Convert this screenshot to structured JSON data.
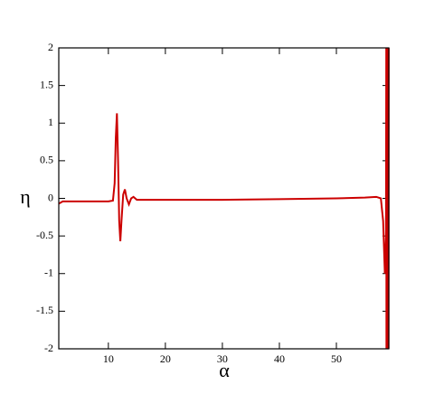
{
  "chart_data": {
    "type": "line",
    "x_label": "α",
    "y_label": "η",
    "x": [
      1.3,
      2,
      5,
      10,
      10.8,
      11.1,
      11.3,
      11.5,
      11.7,
      11.9,
      12.1,
      12.3,
      12.6,
      12.9,
      13.2,
      13.6,
      14.0,
      14.4,
      15,
      20,
      30,
      40,
      50,
      55,
      57,
      57.8,
      58.2,
      58.5,
      58.7,
      58.75,
      58.78,
      58.81,
      58.84,
      58.87,
      58.9,
      58.93,
      58.96,
      58.99,
      59.02,
      59.05,
      59.08,
      59.11,
      59.14,
      59.17
    ],
    "series": [
      {
        "color": "#cc0000",
        "values": [
          -0.07,
          -0.04,
          -0.04,
          -0.04,
          -0.03,
          0.2,
          0.8,
          1.13,
          0.5,
          -0.3,
          -0.57,
          -0.3,
          0.05,
          0.12,
          0.0,
          -0.08,
          0.0,
          0.02,
          -0.02,
          -0.02,
          -0.02,
          -0.01,
          0.0,
          0.01,
          0.02,
          0.0,
          -0.3,
          -1.0,
          -0.5,
          2,
          -2,
          2,
          -2,
          2,
          -2,
          2,
          -2,
          2,
          -2,
          2,
          -2,
          2,
          -2,
          2
        ]
      }
    ],
    "xlim": [
      1.3,
      59.2
    ],
    "xticks": [
      10,
      20,
      30,
      40,
      50
    ],
    "ylim": [
      -2,
      2
    ],
    "yticks": [
      2,
      1.5,
      1,
      0.5,
      0,
      -0.5,
      -1,
      -1.5,
      -2
    ]
  }
}
